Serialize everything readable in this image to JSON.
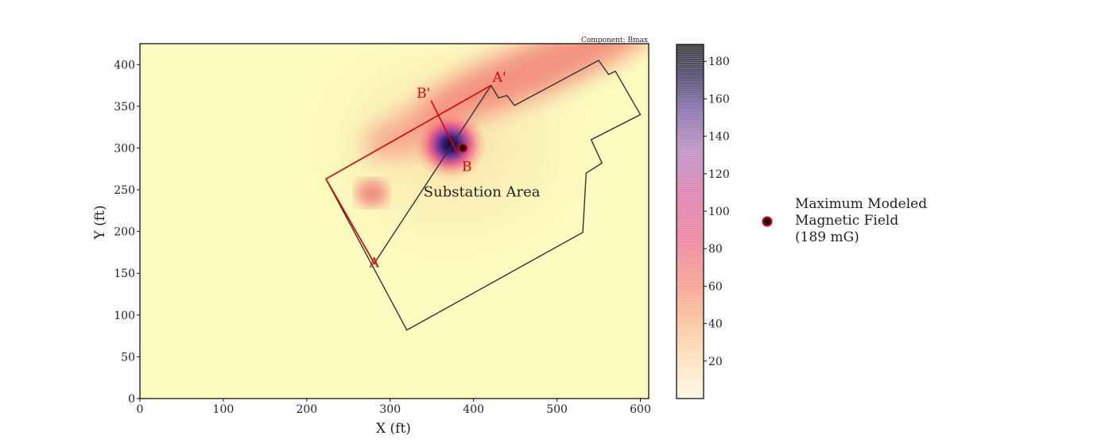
{
  "chart_data": {
    "type": "heatmap",
    "title": "",
    "component_note": "Component: Bmax",
    "xlabel": "X (ft)",
    "ylabel": "Y (ft)",
    "xlim": [
      0,
      610
    ],
    "ylim": [
      0,
      425
    ],
    "xticks": [
      0,
      100,
      200,
      300,
      400,
      500,
      600
    ],
    "yticks": [
      0,
      50,
      100,
      150,
      200,
      250,
      300,
      350,
      400
    ],
    "colorbar": {
      "range": [
        0,
        189
      ],
      "ticks": [
        20,
        40,
        60,
        80,
        100,
        120,
        140,
        160,
        180
      ],
      "colors": [
        "#fff7e6",
        "#fbc99a",
        "#f59a8a",
        "#e66a9a",
        "#c06ab8",
        "#8a5ab0",
        "#3a2a6a",
        "#333333"
      ]
    },
    "substation_boundary": [
      [
        320,
        82
      ],
      [
        531,
        199
      ],
      [
        535,
        270
      ],
      [
        554,
        282
      ],
      [
        541,
        310
      ],
      [
        600,
        340
      ],
      [
        570,
        392
      ],
      [
        562,
        388
      ],
      [
        550,
        405
      ],
      [
        449,
        351
      ],
      [
        440,
        363
      ],
      [
        430,
        360
      ],
      [
        421,
        375
      ],
      [
        281,
        162
      ],
      [
        223,
        263
      ]
    ],
    "cross_sections": [
      {
        "name": "A-A'",
        "start_label": "A",
        "end_label": "A'",
        "points": [
          [
            281,
            162
          ],
          [
            223,
            263
          ],
          [
            421,
            375
          ]
        ]
      },
      {
        "name": "B-B'",
        "start_label": "B",
        "end_label": "B'",
        "points": [
          [
            381,
            293
          ],
          [
            349,
            357
          ]
        ]
      }
    ],
    "point_labels": [
      {
        "text": "A",
        "x": 281,
        "y": 163
      },
      {
        "text": "A'",
        "x": 431,
        "y": 385
      },
      {
        "text": "B",
        "x": 392,
        "y": 278
      },
      {
        "text": "B'",
        "x": 340,
        "y": 366
      }
    ],
    "area_label": {
      "text": "Substation Area",
      "x": 410,
      "y": 242
    },
    "max_point": {
      "x": 387,
      "y": 300,
      "value": 189,
      "unit": "mG"
    },
    "field_sources": [
      {
        "x": 372,
        "y": 304,
        "peak": 189
      },
      {
        "x": 475,
        "y": 395,
        "peak": 75
      },
      {
        "x": 330,
        "y": 320,
        "peak": 55
      },
      {
        "x": 278,
        "y": 246,
        "peak": 50
      }
    ],
    "legend": {
      "entries": [
        {
          "lines": [
            "Maximum Modeled",
            "Magnetic Field",
            "(189 mG)"
          ]
        }
      ]
    }
  }
}
